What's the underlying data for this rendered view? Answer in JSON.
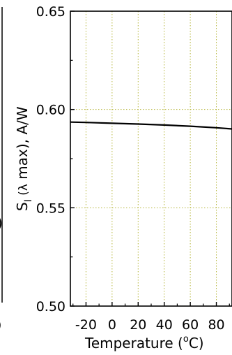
{
  "chart_data": {
    "type": "line",
    "xlabel_main": "Temperature (",
    "xlabel_sup": "o",
    "xlabel_end": "C)",
    "ylabel_s": "S",
    "ylabel_sub": "I",
    "ylabel_mid": " (",
    "ylabel_lambda": "λ",
    "ylabel_rest": " max), A/W",
    "xlim": [
      -32,
      92
    ],
    "ylim": [
      0.5,
      0.65
    ],
    "x_ticks": [
      -20,
      0,
      20,
      40,
      60,
      80
    ],
    "x_tick_labels": [
      "-20",
      "0",
      "20",
      "40",
      "60",
      "80"
    ],
    "y_ticks": [
      0.5,
      0.55,
      0.6,
      0.65
    ],
    "y_tick_labels": [
      "0.50",
      "0.55",
      "0.60",
      "0.65"
    ],
    "grid": true,
    "series": [
      {
        "x": [
          -32,
          -20,
          0,
          20,
          40,
          60,
          80,
          92
        ],
        "y": [
          0.5936,
          0.5934,
          0.593,
          0.5926,
          0.5921,
          0.5915,
          0.5907,
          0.5901
        ]
      }
    ],
    "left_fragment_char": ")",
    "bottom_fragment_char": ")"
  },
  "colors": {
    "grid": "#b5b53a",
    "line": "#000000",
    "axis": "#000000"
  }
}
